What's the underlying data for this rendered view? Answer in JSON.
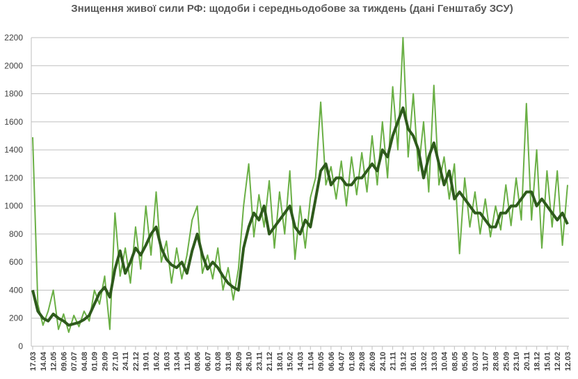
{
  "chart_data": {
    "type": "line",
    "title": "Знищення живої сили РФ: щодоби і середньодобове за тиждень (дані Генштабу ЗСУ)",
    "categories": [
      "17.03",
      null,
      "14.04",
      null,
      "12.05",
      null,
      "09.06",
      null,
      "07.07",
      null,
      "04.08",
      null,
      "01.09",
      null,
      "29.09",
      null,
      "27.10",
      null,
      "24.11",
      null,
      "22.12",
      null,
      "19.01",
      null,
      "16.02",
      null,
      "16.03",
      null,
      "13.04",
      null,
      "11.05",
      null,
      "08.06",
      null,
      "06.07",
      null,
      "03.08",
      null,
      "31.08",
      null,
      "28.09",
      null,
      "26.10",
      null,
      "23.11",
      null,
      "21.12",
      null,
      "18.01",
      null,
      "15.02",
      null,
      "14.03",
      null,
      "11.04",
      null,
      "09.05",
      null,
      "06.06",
      null,
      "04.07",
      null,
      "01.08",
      null,
      "29.08",
      null,
      "26.09",
      null,
      "24.10",
      null,
      "21.11",
      null,
      "19.12",
      null,
      "16.01",
      null,
      "13.02",
      null,
      "13.03",
      null,
      "10.04",
      null,
      "08.05",
      null,
      "05.06",
      null,
      "03.07",
      null,
      "31.07",
      null,
      "28.08",
      null,
      "25.09",
      null,
      "23.10",
      null,
      "20.11",
      null,
      "18.12",
      null,
      "15.01",
      null,
      "12.02",
      null,
      "12.03"
    ],
    "series": [
      {
        "color": "#6aaf45",
        "width": 2,
        "values": [
          1490,
          300,
          150,
          250,
          400,
          120,
          230,
          100,
          220,
          140,
          250,
          180,
          400,
          300,
          500,
          120,
          950,
          500,
          700,
          450,
          850,
          550,
          1000,
          650,
          1100,
          600,
          750,
          450,
          700,
          480,
          650,
          900,
          1000,
          520,
          650,
          480,
          700,
          400,
          560,
          330,
          550,
          1000,
          1300,
          780,
          1080,
          850,
          1180,
          700,
          1100,
          800,
          1250,
          620,
          1000,
          700,
          1060,
          1200,
          1740,
          1150,
          1280,
          1050,
          1320,
          1000,
          1350,
          1080,
          1380,
          1100,
          1500,
          1150,
          1600,
          1200,
          1850,
          1400,
          2200,
          1350,
          1800,
          1250,
          1600,
          1100,
          1860,
          1150,
          1350,
          1050,
          1300,
          660,
          1200,
          850,
          1100,
          800,
          1050,
          780,
          1000,
          830,
          1150,
          860,
          1200,
          900,
          1730,
          900,
          1400,
          700,
          1250,
          850,
          1250,
          720,
          1150
        ]
      },
      {
        "color": "#2e5a1c",
        "width": 4,
        "values": [
          400,
          250,
          200,
          180,
          230,
          200,
          180,
          150,
          160,
          170,
          190,
          220,
          300,
          380,
          420,
          350,
          550,
          680,
          520,
          600,
          700,
          650,
          720,
          800,
          850,
          700,
          620,
          580,
          560,
          600,
          520,
          680,
          800,
          650,
          550,
          600,
          560,
          500,
          450,
          420,
          400,
          700,
          850,
          950,
          900,
          1000,
          800,
          850,
          900,
          950,
          1000,
          850,
          800,
          900,
          850,
          1050,
          1250,
          1300,
          1150,
          1200,
          1200,
          1150,
          1150,
          1200,
          1200,
          1250,
          1300,
          1250,
          1400,
          1350,
          1500,
          1600,
          1700,
          1550,
          1500,
          1400,
          1200,
          1350,
          1450,
          1300,
          1150,
          1250,
          1050,
          1100,
          1050,
          1000,
          950,
          950,
          900,
          850,
          850,
          950,
          950,
          1000,
          1000,
          1050,
          1100,
          1100,
          1000,
          1050,
          1000,
          950,
          900,
          950,
          870
        ]
      }
    ],
    "ylim": [
      0,
      2200
    ],
    "yticks": [
      0,
      200,
      400,
      600,
      800,
      1000,
      1200,
      1400,
      1600,
      1800,
      2000,
      2200
    ],
    "grid": true
  }
}
